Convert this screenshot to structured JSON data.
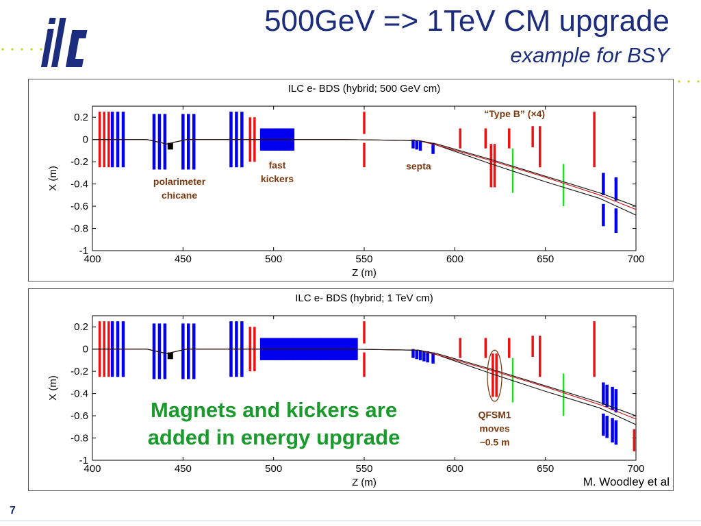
{
  "header": {
    "title": "500GeV => 1TeV CM upgrade",
    "subtitle": "example for BSY",
    "logo_text": "ilc"
  },
  "callout": {
    "line1": "Magnets and kickers are",
    "line2": "added in energy upgrade"
  },
  "credit": "M. Woodley et al",
  "slide_number": "7",
  "colors": {
    "title": "#1b2d7c",
    "quad": "#0000ee",
    "bend": "#ee1111",
    "corrector": "#22dd22",
    "annotation": "#7b3a10",
    "callout": "#1a9a2c",
    "logo": "#1b2d7c"
  },
  "chart_data": [
    {
      "type": "line",
      "title": "ILC e- BDS (hybrid; 500 GeV cm)",
      "xlabel": "Z (m)",
      "ylabel": "X (m)",
      "xlim": [
        400,
        700
      ],
      "ylim": [
        -1,
        0.3
      ],
      "xticks": [
        400,
        450,
        500,
        550,
        600,
        650,
        700
      ],
      "yticks": [
        0.2,
        0,
        -0.2,
        -0.4,
        -0.6,
        -0.8,
        -1
      ],
      "grid": false,
      "series": [
        {
          "x": [
            400,
            430,
            441,
            452,
            480,
            500,
            540,
            580,
            590,
            620,
            650,
            680,
            700
          ],
          "y": [
            0,
            0,
            -0.04,
            0,
            0,
            0,
            0,
            -0.01,
            -0.05,
            -0.22,
            -0.38,
            -0.53,
            -0.68
          ]
        },
        {
          "x": [
            400,
            430,
            441,
            452,
            480,
            500,
            540,
            580,
            590,
            620,
            650,
            680,
            700
          ],
          "y": [
            0,
            0,
            -0.04,
            0,
            0,
            0,
            0,
            -0.01,
            -0.05,
            -0.19,
            -0.34,
            -0.5,
            -0.63
          ]
        },
        {
          "x": [
            400,
            430,
            441,
            452,
            480,
            500,
            540,
            580,
            590,
            620,
            650,
            680,
            700
          ],
          "y": [
            0,
            0,
            -0.04,
            0,
            0,
            0,
            0,
            -0.01,
            -0.04,
            -0.18,
            -0.33,
            -0.48,
            -0.6
          ]
        }
      ],
      "elements": [
        {
          "kind": "bend",
          "z": 404,
          "x1": 0.25,
          "x2": -0.25
        },
        {
          "kind": "bend",
          "z": 406.5,
          "x1": 0.25,
          "x2": -0.25
        },
        {
          "kind": "bend",
          "z": 409,
          "x1": 0.25,
          "x2": -0.25
        },
        {
          "kind": "quad",
          "z": 411,
          "x1": 0.25,
          "x2": -0.25
        },
        {
          "kind": "quad",
          "z": 414,
          "x1": 0.25,
          "x2": -0.25
        },
        {
          "kind": "quad",
          "z": 417,
          "x1": 0.25,
          "x2": -0.25
        },
        {
          "kind": "quad",
          "z": 434,
          "x1": 0.23,
          "x2": -0.27
        },
        {
          "kind": "quad",
          "z": 437,
          "x1": 0.23,
          "x2": -0.27
        },
        {
          "kind": "quad",
          "z": 440,
          "x1": 0.23,
          "x2": -0.27
        },
        {
          "kind": "polarimeter",
          "z": 443,
          "x1": -0.03,
          "x2": -0.09
        },
        {
          "kind": "quad",
          "z": 450,
          "x1": 0.23,
          "x2": -0.27
        },
        {
          "kind": "quad",
          "z": 453,
          "x1": 0.23,
          "x2": -0.27
        },
        {
          "kind": "quad",
          "z": 456,
          "x1": 0.23,
          "x2": -0.27
        },
        {
          "kind": "quad",
          "z": 476.5,
          "x1": 0.25,
          "x2": -0.25
        },
        {
          "kind": "quad",
          "z": 479.5,
          "x1": 0.25,
          "x2": -0.25
        },
        {
          "kind": "quad",
          "z": 482.5,
          "x1": 0.25,
          "x2": -0.25
        },
        {
          "kind": "bend",
          "z": 487,
          "x1": 0.2,
          "x2": -0.2
        },
        {
          "kind": "bend",
          "z": 489.5,
          "x1": 0.2,
          "x2": -0.2
        },
        {
          "kind": "kicker",
          "z": 494.5,
          "x1": 0.1,
          "x2": -0.1
        },
        {
          "kind": "kicker",
          "z": 497,
          "x1": 0.1,
          "x2": -0.1
        },
        {
          "kind": "kicker",
          "z": 499.5,
          "x1": 0.1,
          "x2": -0.1
        },
        {
          "kind": "kicker",
          "z": 502,
          "x1": 0.1,
          "x2": -0.1
        },
        {
          "kind": "kicker",
          "z": 504.5,
          "x1": 0.1,
          "x2": -0.1
        },
        {
          "kind": "kicker",
          "z": 507,
          "x1": 0.1,
          "x2": -0.1
        },
        {
          "kind": "kicker",
          "z": 509.5,
          "x1": 0.1,
          "x2": -0.1
        },
        {
          "kind": "bend",
          "z": 550,
          "x1": 0.25,
          "x2": 0.05
        },
        {
          "kind": "bend",
          "z": 550,
          "x1": -0.03,
          "x2": -0.25
        },
        {
          "kind": "quad",
          "z": 577,
          "x1": 0.0,
          "x2": -0.08
        },
        {
          "kind": "quad",
          "z": 579,
          "x1": -0.01,
          "x2": -0.09
        },
        {
          "kind": "quad",
          "z": 581,
          "x1": -0.01,
          "x2": -0.1
        },
        {
          "kind": "quad",
          "z": 588,
          "x1": -0.03,
          "x2": -0.13
        },
        {
          "kind": "bend",
          "z": 603,
          "x1": 0.1,
          "x2": -0.08
        },
        {
          "kind": "bend",
          "z": 617,
          "x1": 0.1,
          "x2": -0.08
        },
        {
          "kind": "bend",
          "z": 620,
          "x1": -0.04,
          "x2": -0.43
        },
        {
          "kind": "bend",
          "z": 622,
          "x1": -0.04,
          "x2": -0.43
        },
        {
          "kind": "corrector",
          "z": 632,
          "x1": -0.08,
          "x2": -0.48
        },
        {
          "kind": "bend",
          "z": 630,
          "x1": 0.1,
          "x2": -0.08
        },
        {
          "kind": "bend",
          "z": 643,
          "x1": 0.12,
          "x2": -0.07
        },
        {
          "kind": "bend",
          "z": 647,
          "x1": 0.12,
          "x2": -0.25
        },
        {
          "kind": "corrector",
          "z": 660,
          "x1": -0.22,
          "x2": -0.6
        },
        {
          "kind": "bend",
          "z": 677,
          "x1": 0.25,
          "x2": -0.25
        },
        {
          "kind": "quad",
          "z": 682,
          "x1": -0.3,
          "x2": -0.5
        },
        {
          "kind": "quad",
          "z": 682,
          "x1": -0.58,
          "x2": -0.78
        },
        {
          "kind": "quad",
          "z": 689,
          "x1": -0.34,
          "x2": -0.55
        },
        {
          "kind": "quad",
          "z": 689,
          "x1": -0.62,
          "x2": -0.84
        }
      ],
      "annotations": [
        {
          "lines": [
            "polarimeter",
            "chicane"
          ],
          "x": 448,
          "y": -0.41
        },
        {
          "lines": [
            "fast",
            "kickers"
          ],
          "x": 502,
          "y": -0.26
        },
        {
          "lines": [
            "septa"
          ],
          "x": 580,
          "y": -0.27
        },
        {
          "lines": [
            "“Type B” (×4)"
          ],
          "x": 633,
          "y": 0.2
        }
      ]
    },
    {
      "type": "line",
      "title": "ILC e- BDS (hybrid; 1 TeV cm)",
      "xlabel": "Z (m)",
      "ylabel": "X (m)",
      "xlim": [
        400,
        700
      ],
      "ylim": [
        -1,
        0.3
      ],
      "xticks": [
        400,
        450,
        500,
        550,
        600,
        650,
        700
      ],
      "yticks": [
        0.2,
        0,
        -0.2,
        -0.4,
        -0.6,
        -0.8,
        -1
      ],
      "grid": false,
      "series": [
        {
          "x": [
            400,
            430,
            441,
            452,
            480,
            500,
            540,
            580,
            590,
            620,
            650,
            680,
            700
          ],
          "y": [
            0,
            0,
            -0.04,
            0,
            0,
            0,
            0,
            -0.01,
            -0.05,
            -0.22,
            -0.38,
            -0.53,
            -0.68
          ]
        },
        {
          "x": [
            400,
            430,
            441,
            452,
            480,
            500,
            540,
            580,
            590,
            620,
            650,
            680,
            700
          ],
          "y": [
            0,
            0,
            -0.04,
            0,
            0,
            0,
            0,
            -0.01,
            -0.05,
            -0.19,
            -0.34,
            -0.5,
            -0.63
          ]
        },
        {
          "x": [
            400,
            430,
            441,
            452,
            480,
            500,
            540,
            580,
            590,
            620,
            650,
            680,
            700
          ],
          "y": [
            0,
            0,
            -0.04,
            0,
            0,
            0,
            0,
            -0.01,
            -0.04,
            -0.18,
            -0.33,
            -0.48,
            -0.6
          ]
        }
      ],
      "elements": [
        {
          "kind": "bend",
          "z": 404,
          "x1": 0.25,
          "x2": -0.25
        },
        {
          "kind": "bend",
          "z": 406.5,
          "x1": 0.25,
          "x2": -0.25
        },
        {
          "kind": "bend",
          "z": 409,
          "x1": 0.25,
          "x2": -0.25
        },
        {
          "kind": "quad",
          "z": 411,
          "x1": 0.25,
          "x2": -0.25
        },
        {
          "kind": "quad",
          "z": 414,
          "x1": 0.25,
          "x2": -0.25
        },
        {
          "kind": "quad",
          "z": 417,
          "x1": 0.25,
          "x2": -0.25
        },
        {
          "kind": "quad",
          "z": 434,
          "x1": 0.23,
          "x2": -0.27
        },
        {
          "kind": "quad",
          "z": 437,
          "x1": 0.23,
          "x2": -0.27
        },
        {
          "kind": "quad",
          "z": 440,
          "x1": 0.23,
          "x2": -0.27
        },
        {
          "kind": "polarimeter",
          "z": 443,
          "x1": -0.03,
          "x2": -0.09
        },
        {
          "kind": "quad",
          "z": 450,
          "x1": 0.23,
          "x2": -0.27
        },
        {
          "kind": "quad",
          "z": 453,
          "x1": 0.23,
          "x2": -0.27
        },
        {
          "kind": "quad",
          "z": 456,
          "x1": 0.23,
          "x2": -0.27
        },
        {
          "kind": "quad",
          "z": 476.5,
          "x1": 0.25,
          "x2": -0.25
        },
        {
          "kind": "quad",
          "z": 479.5,
          "x1": 0.25,
          "x2": -0.25
        },
        {
          "kind": "quad",
          "z": 482.5,
          "x1": 0.25,
          "x2": -0.25
        },
        {
          "kind": "bend",
          "z": 487,
          "x1": 0.2,
          "x2": -0.2
        },
        {
          "kind": "bend",
          "z": 489.5,
          "x1": 0.2,
          "x2": -0.2
        },
        {
          "kind": "kicker",
          "z": 494.5,
          "x1": 0.1,
          "x2": -0.1
        },
        {
          "kind": "kicker",
          "z": 497,
          "x1": 0.1,
          "x2": -0.1
        },
        {
          "kind": "kicker",
          "z": 499.5,
          "x1": 0.1,
          "x2": -0.1
        },
        {
          "kind": "kicker",
          "z": 502,
          "x1": 0.1,
          "x2": -0.1
        },
        {
          "kind": "kicker",
          "z": 504.5,
          "x1": 0.1,
          "x2": -0.1
        },
        {
          "kind": "kicker",
          "z": 507,
          "x1": 0.1,
          "x2": -0.1
        },
        {
          "kind": "kicker",
          "z": 509.5,
          "x1": 0.1,
          "x2": -0.1
        },
        {
          "kind": "kicker",
          "z": 512,
          "x1": 0.1,
          "x2": -0.1
        },
        {
          "kind": "kicker",
          "z": 514.5,
          "x1": 0.1,
          "x2": -0.1
        },
        {
          "kind": "kicker",
          "z": 517,
          "x1": 0.1,
          "x2": -0.1
        },
        {
          "kind": "kicker",
          "z": 519.5,
          "x1": 0.1,
          "x2": -0.1
        },
        {
          "kind": "kicker",
          "z": 522,
          "x1": 0.1,
          "x2": -0.1
        },
        {
          "kind": "kicker",
          "z": 524.5,
          "x1": 0.1,
          "x2": -0.1
        },
        {
          "kind": "kicker",
          "z": 527,
          "x1": 0.1,
          "x2": -0.1
        },
        {
          "kind": "kicker",
          "z": 529.5,
          "x1": 0.1,
          "x2": -0.1
        },
        {
          "kind": "kicker",
          "z": 532,
          "x1": 0.1,
          "x2": -0.1
        },
        {
          "kind": "kicker",
          "z": 534.5,
          "x1": 0.1,
          "x2": -0.1
        },
        {
          "kind": "kicker",
          "z": 537,
          "x1": 0.1,
          "x2": -0.1
        },
        {
          "kind": "kicker",
          "z": 539.5,
          "x1": 0.1,
          "x2": -0.1
        },
        {
          "kind": "kicker",
          "z": 542,
          "x1": 0.1,
          "x2": -0.1
        },
        {
          "kind": "kicker",
          "z": 544.5,
          "x1": 0.1,
          "x2": -0.1
        },
        {
          "kind": "bend",
          "z": 550,
          "x1": 0.25,
          "x2": 0.05
        },
        {
          "kind": "bend",
          "z": 550,
          "x1": -0.03,
          "x2": -0.25
        },
        {
          "kind": "quad",
          "z": 577,
          "x1": 0.0,
          "x2": -0.08
        },
        {
          "kind": "quad",
          "z": 579,
          "x1": -0.01,
          "x2": -0.09
        },
        {
          "kind": "quad",
          "z": 581,
          "x1": -0.01,
          "x2": -0.1
        },
        {
          "kind": "quad",
          "z": 583,
          "x1": -0.02,
          "x2": -0.11
        },
        {
          "kind": "quad",
          "z": 585,
          "x1": -0.02,
          "x2": -0.12
        },
        {
          "kind": "quad",
          "z": 588,
          "x1": -0.03,
          "x2": -0.13
        },
        {
          "kind": "bend",
          "z": 603,
          "x1": 0.1,
          "x2": -0.08
        },
        {
          "kind": "bend",
          "z": 617,
          "x1": 0.1,
          "x2": -0.08
        },
        {
          "kind": "bend",
          "z": 621,
          "x1": -0.04,
          "x2": -0.43
        },
        {
          "kind": "bend",
          "z": 623,
          "x1": -0.04,
          "x2": -0.43
        },
        {
          "kind": "corrector",
          "z": 632,
          "x1": -0.08,
          "x2": -0.48
        },
        {
          "kind": "bend",
          "z": 630,
          "x1": 0.1,
          "x2": -0.08
        },
        {
          "kind": "bend",
          "z": 643,
          "x1": 0.12,
          "x2": -0.07
        },
        {
          "kind": "bend",
          "z": 647,
          "x1": 0.12,
          "x2": -0.25
        },
        {
          "kind": "corrector",
          "z": 660,
          "x1": -0.22,
          "x2": -0.6
        },
        {
          "kind": "bend",
          "z": 677,
          "x1": 0.25,
          "x2": -0.25
        },
        {
          "kind": "quad",
          "z": 682,
          "x1": -0.3,
          "x2": -0.5
        },
        {
          "kind": "quad",
          "z": 684,
          "x1": -0.32,
          "x2": -0.52
        },
        {
          "kind": "quad",
          "z": 682,
          "x1": -0.58,
          "x2": -0.78
        },
        {
          "kind": "quad",
          "z": 684,
          "x1": -0.6,
          "x2": -0.8
        },
        {
          "kind": "quad",
          "z": 687,
          "x1": -0.34,
          "x2": -0.55
        },
        {
          "kind": "quad",
          "z": 689,
          "x1": -0.36,
          "x2": -0.57
        },
        {
          "kind": "quad",
          "z": 687,
          "x1": -0.62,
          "x2": -0.84
        },
        {
          "kind": "quad",
          "z": 689,
          "x1": -0.64,
          "x2": -0.86
        },
        {
          "kind": "bend",
          "z": 699,
          "x1": -0.72,
          "x2": -0.92
        }
      ],
      "annotations": [
        {
          "lines": [
            "QFSM1",
            "moves",
            "~0.5 m"
          ],
          "x": 622,
          "y": -0.62
        }
      ],
      "highlight": {
        "z": 622,
        "x": -0.24,
        "rx": 4,
        "ry": 0.23
      }
    }
  ]
}
